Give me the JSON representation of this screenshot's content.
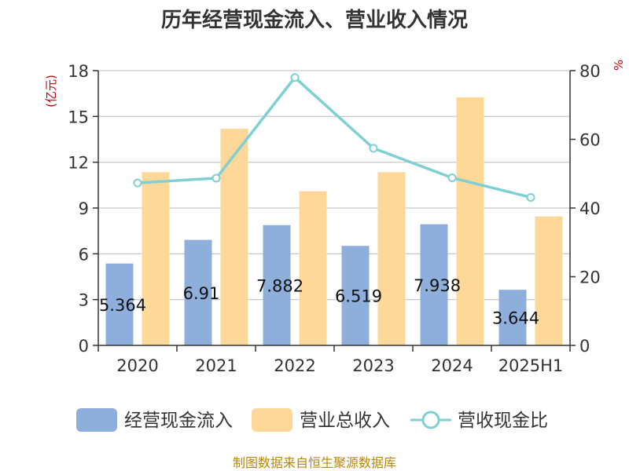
{
  "chart_data": {
    "type": "bar",
    "title": "历年经营现金流入、营业收入情况",
    "categories": [
      "2020",
      "2021",
      "2022",
      "2023",
      "2024",
      "2025H1"
    ],
    "y_left": {
      "unit": "(亿元)",
      "ticks": [
        "0",
        "3",
        "6",
        "9",
        "12",
        "15",
        "18"
      ],
      "ylim": [
        0,
        18
      ]
    },
    "y_right": {
      "unit": "%",
      "ticks": [
        "0",
        "20",
        "40",
        "60",
        "80"
      ],
      "ylim": [
        0,
        80
      ]
    },
    "series": [
      {
        "name": "经营现金流入",
        "type": "bar",
        "axis": "left",
        "color": "#8eaedb",
        "values": [
          5.364,
          6.91,
          7.882,
          6.519,
          7.938,
          3.644
        ],
        "labels": [
          "5.364",
          "6.91",
          "7.882",
          "6.519",
          "7.938",
          "3.644"
        ]
      },
      {
        "name": "营业总收入",
        "type": "bar",
        "axis": "left",
        "color": "#fdd898",
        "values": [
          11.35,
          14.2,
          10.1,
          11.35,
          16.25,
          8.45
        ]
      },
      {
        "name": "营收现金比",
        "type": "line",
        "axis": "right",
        "color": "#7fd0d2",
        "values": [
          47.3,
          48.7,
          78.0,
          57.4,
          48.8,
          43.1
        ]
      }
    ],
    "grid": true,
    "legend": "bottom"
  },
  "source": "制图数据来自恒生聚源数据库"
}
